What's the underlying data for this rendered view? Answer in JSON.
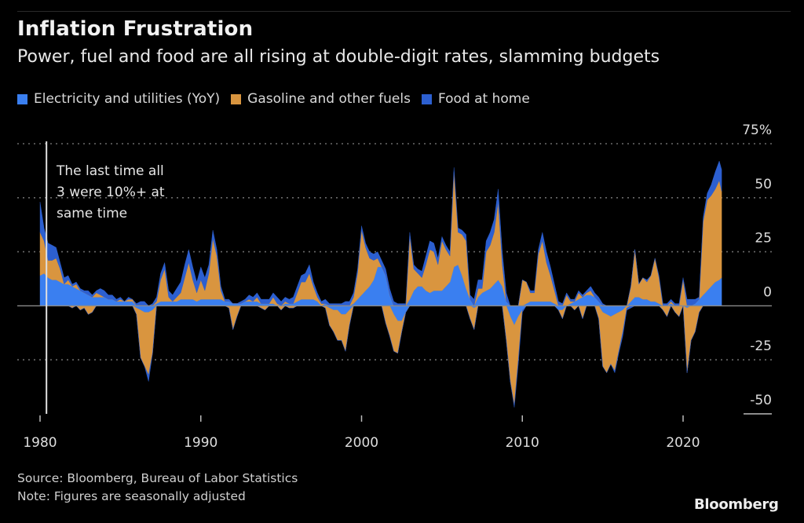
{
  "header": {
    "title": "Inflation Frustration",
    "subtitle": "Power, fuel and food are all rising at double-digit rates, slamming budgets"
  },
  "footer": {
    "source": "Source: Bloomberg, Bureau of Labor Statistics",
    "note": "Note: Figures are seasonally adjusted",
    "logo": "Bloomberg"
  },
  "chart_data": {
    "type": "area",
    "stacked": true,
    "title": "Inflation Frustration",
    "subtitle": "Power, fuel and food are all rising at double-digit rates, slamming budgets",
    "xlabel": "",
    "ylabel": "",
    "ylim": [
      -50,
      75
    ],
    "xlim": [
      1980,
      2022.5
    ],
    "y_ticks": [
      75,
      50,
      25,
      0,
      -25,
      -50
    ],
    "y_tick_labels": [
      "75%",
      "50",
      "25",
      "0",
      "-25",
      "-50"
    ],
    "x_ticks": [
      1980,
      1990,
      2000,
      2010,
      2020
    ],
    "x_tick_labels": [
      "1980",
      "1990",
      "2000",
      "2010",
      "2020"
    ],
    "grid": true,
    "legend_position": "top-left",
    "annotation": {
      "x": 1980.4,
      "lines": [
        "The last time all",
        "3 were 10%+ at",
        "same time"
      ]
    },
    "series": [
      {
        "name": "Electricity and utilities (YoY)",
        "color": "#3a7ff0"
      },
      {
        "name": "Gasoline and other fuels",
        "color": "#d9953f"
      },
      {
        "name": "Food at home",
        "color": "#2c5fd0"
      }
    ],
    "columns": [
      "year",
      "electricity",
      "gasoline",
      "food"
    ],
    "points": [
      [
        1980.0,
        14,
        20,
        14
      ],
      [
        1980.25,
        15,
        15,
        6
      ],
      [
        1980.5,
        13,
        8,
        8
      ],
      [
        1980.75,
        12,
        9,
        7
      ],
      [
        1981.0,
        12,
        10,
        5
      ],
      [
        1981.25,
        11,
        6,
        3
      ],
      [
        1981.5,
        10,
        0,
        3
      ],
      [
        1981.75,
        10,
        2,
        2
      ],
      [
        1982.0,
        9,
        -1,
        1
      ],
      [
        1982.25,
        8,
        2,
        1
      ],
      [
        1982.5,
        7,
        -2,
        1
      ],
      [
        1982.75,
        6,
        -1,
        1
      ],
      [
        1983.0,
        5,
        -4,
        2
      ],
      [
        1983.25,
        4,
        -3,
        1
      ],
      [
        1983.5,
        4,
        2,
        1
      ],
      [
        1983.75,
        4,
        1,
        3
      ],
      [
        1984.0,
        4,
        0,
        3
      ],
      [
        1984.25,
        3,
        0,
        2
      ],
      [
        1984.5,
        3,
        0,
        2
      ],
      [
        1984.75,
        2,
        0,
        1
      ],
      [
        1985.0,
        2,
        1,
        1
      ],
      [
        1985.25,
        2,
        0,
        0
      ],
      [
        1985.5,
        2,
        1,
        1
      ],
      [
        1985.75,
        2,
        1,
        0
      ],
      [
        1986.0,
        -1,
        -3,
        1
      ],
      [
        1986.25,
        -2,
        -22,
        2
      ],
      [
        1986.5,
        -3,
        -25,
        2
      ],
      [
        1986.75,
        -3,
        -29,
        -3
      ],
      [
        1987.0,
        -2,
        -20,
        1
      ],
      [
        1987.25,
        1,
        1,
        2
      ],
      [
        1987.5,
        2,
        10,
        3
      ],
      [
        1987.75,
        2,
        15,
        3
      ],
      [
        1988.0,
        2,
        2,
        3
      ],
      [
        1988.25,
        2,
        0,
        3
      ],
      [
        1988.5,
        2,
        2,
        4
      ],
      [
        1988.75,
        3,
        3,
        5
      ],
      [
        1989.0,
        3,
        10,
        6
      ],
      [
        1989.25,
        3,
        17,
        6
      ],
      [
        1989.5,
        3,
        9,
        6
      ],
      [
        1989.75,
        2,
        4,
        5
      ],
      [
        1990.0,
        3,
        9,
        6
      ],
      [
        1990.25,
        3,
        4,
        6
      ],
      [
        1990.5,
        3,
        12,
        4
      ],
      [
        1990.75,
        3,
        28,
        4
      ],
      [
        1991.0,
        3,
        20,
        3
      ],
      [
        1991.25,
        3,
        4,
        2
      ],
      [
        1991.5,
        2,
        0,
        1
      ],
      [
        1991.75,
        2,
        -1,
        1
      ],
      [
        1992.0,
        1,
        -11,
        0
      ],
      [
        1992.25,
        1,
        -5,
        0
      ],
      [
        1992.5,
        1,
        0,
        1
      ],
      [
        1992.75,
        2,
        0,
        1
      ],
      [
        1993.0,
        2,
        1,
        2
      ],
      [
        1993.25,
        2,
        0,
        2
      ],
      [
        1993.5,
        2,
        2,
        2
      ],
      [
        1993.75,
        1,
        -1,
        2
      ],
      [
        1994.0,
        1,
        -2,
        2
      ],
      [
        1994.25,
        1,
        0,
        2
      ],
      [
        1994.5,
        1,
        3,
        2
      ],
      [
        1994.75,
        0,
        1,
        3
      ],
      [
        1995.0,
        0,
        -2,
        2
      ],
      [
        1995.25,
        1,
        1,
        2
      ],
      [
        1995.5,
        1,
        -1,
        2
      ],
      [
        1995.75,
        1,
        -1,
        3
      ],
      [
        1996.0,
        2,
        4,
        3
      ],
      [
        1996.25,
        3,
        8,
        3
      ],
      [
        1996.5,
        3,
        8,
        4
      ],
      [
        1996.75,
        3,
        12,
        4
      ],
      [
        1997.0,
        3,
        6,
        2
      ],
      [
        1997.25,
        2,
        2,
        2
      ],
      [
        1997.5,
        0,
        1,
        1
      ],
      [
        1997.75,
        1,
        -1,
        2
      ],
      [
        1998.0,
        -1,
        -8,
        1
      ],
      [
        1998.25,
        -2,
        -10,
        1
      ],
      [
        1998.5,
        -2,
        -14,
        1
      ],
      [
        1998.75,
        -4,
        -12,
        1
      ],
      [
        1999.0,
        -4,
        -17,
        2
      ],
      [
        1999.25,
        -2,
        -7,
        2
      ],
      [
        1999.5,
        1,
        3,
        2
      ],
      [
        1999.75,
        3,
        12,
        2
      ],
      [
        2000.0,
        5,
        30,
        2
      ],
      [
        2000.25,
        7,
        20,
        2
      ],
      [
        2000.5,
        9,
        13,
        3
      ],
      [
        2000.75,
        12,
        9,
        3
      ],
      [
        2001.0,
        18,
        4,
        3
      ],
      [
        2001.25,
        18,
        0,
        3
      ],
      [
        2001.5,
        14,
        -8,
        3
      ],
      [
        2001.75,
        5,
        -14,
        3
      ],
      [
        2002.0,
        -4,
        -17,
        2
      ],
      [
        2002.25,
        -7,
        -15,
        1
      ],
      [
        2002.5,
        -7,
        -5,
        1
      ],
      [
        2002.75,
        -3,
        0,
        1
      ],
      [
        2003.0,
        3,
        29,
        2
      ],
      [
        2003.25,
        7,
        10,
        2
      ],
      [
        2003.5,
        9,
        6,
        2
      ],
      [
        2003.75,
        9,
        4,
        3
      ],
      [
        2004.0,
        7,
        12,
        4
      ],
      [
        2004.25,
        6,
        20,
        4
      ],
      [
        2004.5,
        7,
        18,
        4
      ],
      [
        2004.75,
        7,
        12,
        3
      ],
      [
        2005.0,
        7,
        23,
        2
      ],
      [
        2005.25,
        9,
        17,
        2
      ],
      [
        2005.5,
        11,
        12,
        2
      ],
      [
        2005.75,
        18,
        44,
        2
      ],
      [
        2006.0,
        19,
        15,
        2
      ],
      [
        2006.25,
        14,
        19,
        2
      ],
      [
        2006.5,
        8,
        22,
        3
      ],
      [
        2006.75,
        3,
        -6,
        2
      ],
      [
        2007.0,
        -1,
        -10,
        3
      ],
      [
        2007.25,
        4,
        4,
        4
      ],
      [
        2007.5,
        6,
        2,
        4
      ],
      [
        2007.75,
        7,
        18,
        5
      ],
      [
        2008.0,
        8,
        20,
        6
      ],
      [
        2008.25,
        10,
        24,
        6
      ],
      [
        2008.5,
        12,
        36,
        6
      ],
      [
        2008.75,
        9,
        10,
        6
      ],
      [
        2009.0,
        2,
        -16,
        4
      ],
      [
        2009.25,
        -5,
        -30,
        0
      ],
      [
        2009.5,
        -9,
        -37,
        -1
      ],
      [
        2009.75,
        -5,
        -20,
        -2
      ],
      [
        2010.0,
        -2,
        12,
        -1
      ],
      [
        2010.25,
        1,
        10,
        0
      ],
      [
        2010.5,
        2,
        4,
        1
      ],
      [
        2010.75,
        2,
        4,
        1
      ],
      [
        2011.0,
        2,
        22,
        2
      ],
      [
        2011.25,
        2,
        28,
        4
      ],
      [
        2011.5,
        2,
        18,
        5
      ],
      [
        2011.75,
        2,
        12,
        4
      ],
      [
        2012.0,
        1,
        6,
        3
      ],
      [
        2012.25,
        -2,
        0,
        2
      ],
      [
        2012.5,
        -2,
        -4,
        1
      ],
      [
        2012.75,
        0,
        5,
        1
      ],
      [
        2013.0,
        1,
        1,
        1
      ],
      [
        2013.25,
        2,
        -2,
        1
      ],
      [
        2013.5,
        3,
        3,
        1
      ],
      [
        2013.75,
        4,
        -6,
        1
      ],
      [
        2014.0,
        5,
        1,
        1
      ],
      [
        2014.25,
        5,
        2,
        2
      ],
      [
        2014.5,
        4,
        0,
        2
      ],
      [
        2014.75,
        2,
        -6,
        2
      ],
      [
        2015.0,
        -3,
        -25,
        1
      ],
      [
        2015.25,
        -4,
        -27,
        0
      ],
      [
        2015.5,
        -5,
        -22,
        0
      ],
      [
        2015.75,
        -4,
        -26,
        -1
      ],
      [
        2016.0,
        -3,
        -18,
        -1
      ],
      [
        2016.25,
        -2,
        -10,
        -2
      ],
      [
        2016.5,
        0,
        -1,
        -1
      ],
      [
        2016.75,
        2,
        7,
        -1
      ],
      [
        2017.0,
        4,
        22,
        0
      ],
      [
        2017.25,
        4,
        6,
        0
      ],
      [
        2017.5,
        3,
        10,
        0
      ],
      [
        2017.75,
        3,
        8,
        1
      ],
      [
        2018.0,
        2,
        12,
        0
      ],
      [
        2018.25,
        2,
        20,
        0
      ],
      [
        2018.5,
        1,
        12,
        1
      ],
      [
        2018.75,
        0,
        -2,
        1
      ],
      [
        2019.0,
        0,
        -5,
        1
      ],
      [
        2019.25,
        1,
        1,
        1
      ],
      [
        2019.5,
        0,
        -3,
        1
      ],
      [
        2019.75,
        0,
        -5,
        1
      ],
      [
        2020.0,
        0,
        12,
        1
      ],
      [
        2020.25,
        -1,
        -30,
        3
      ],
      [
        2020.5,
        0,
        -16,
        3
      ],
      [
        2020.75,
        1,
        -12,
        2
      ],
      [
        2021.0,
        3,
        -3,
        1
      ],
      [
        2021.25,
        5,
        34,
        2
      ],
      [
        2021.5,
        7,
        42,
        3
      ],
      [
        2021.75,
        9,
        42,
        5
      ],
      [
        2022.0,
        11,
        43,
        8
      ],
      [
        2022.25,
        12,
        46,
        9
      ],
      [
        2022.4,
        13,
        40,
        10
      ]
    ]
  }
}
